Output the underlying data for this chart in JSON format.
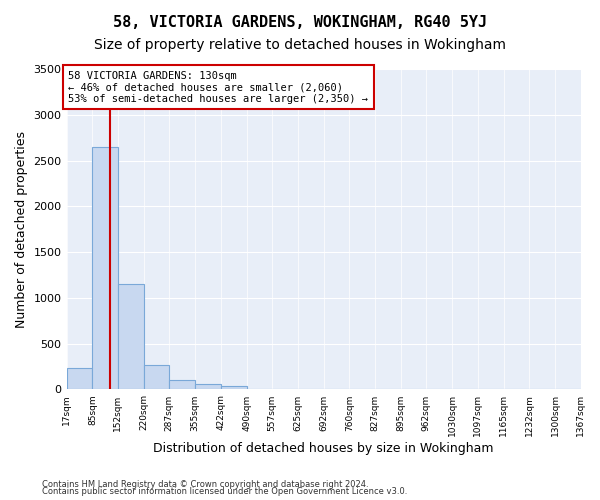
{
  "title": "58, VICTORIA GARDENS, WOKINGHAM, RG40 5YJ",
  "subtitle": "Size of property relative to detached houses in Wokingham",
  "xlabel": "Distribution of detached houses by size in Wokingham",
  "ylabel": "Number of detached properties",
  "bin_edges": [
    17,
    85,
    152,
    220,
    287,
    355,
    422,
    490,
    557,
    625,
    692,
    760,
    827,
    895,
    962,
    1030,
    1097,
    1165,
    1232,
    1300,
    1367
  ],
  "bin_labels": [
    "17sqm",
    "85sqm",
    "152sqm",
    "220sqm",
    "287sqm",
    "355sqm",
    "422sqm",
    "490sqm",
    "557sqm",
    "625sqm",
    "692sqm",
    "760sqm",
    "827sqm",
    "895sqm",
    "962sqm",
    "1030sqm",
    "1097sqm",
    "1165sqm",
    "1232sqm",
    "1300sqm",
    "1367sqm"
  ],
  "bar_heights": [
    230,
    2650,
    1150,
    270,
    100,
    55,
    40,
    0,
    0,
    0,
    0,
    0,
    0,
    0,
    0,
    0,
    0,
    0,
    0,
    0
  ],
  "bar_color": "#c8d8f0",
  "bar_edge_color": "#7aa8d8",
  "property_line_value": 130,
  "property_line_color": "#cc0000",
  "annotation_text": "58 VICTORIA GARDENS: 130sqm\n← 46% of detached houses are smaller (2,060)\n53% of semi-detached houses are larger (2,350) →",
  "annotation_box_color": "#ffffff",
  "annotation_box_edge_color": "#cc0000",
  "ylim": [
    0,
    3500
  ],
  "yticks": [
    0,
    500,
    1000,
    1500,
    2000,
    2500,
    3000,
    3500
  ],
  "plot_bg_color": "#e8eef8",
  "footer_line1": "Contains HM Land Registry data © Crown copyright and database right 2024.",
  "footer_line2": "Contains public sector information licensed under the Open Government Licence v3.0.",
  "title_fontsize": 11,
  "subtitle_fontsize": 10,
  "xlabel_fontsize": 9,
  "ylabel_fontsize": 9
}
